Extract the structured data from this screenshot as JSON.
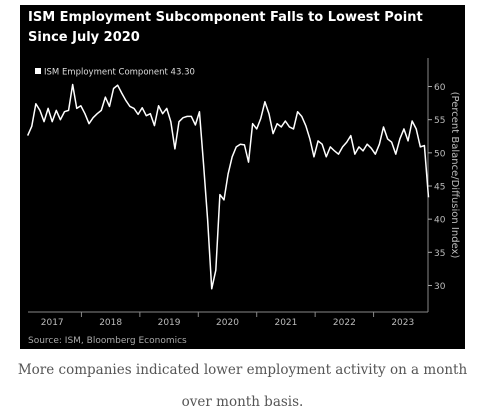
{
  "chart_data": {
    "type": "line",
    "title": "ISM Employment Subcomponent Falls to Lowest Point Since July 2020",
    "y_axis_label": "(Percent Balance/Diffusion Index)",
    "source": "Source: ISM, Bloomberg Economics",
    "x": [
      2017.08,
      2017.15,
      2017.22,
      2017.29,
      2017.36,
      2017.43,
      2017.5,
      2017.57,
      2017.64,
      2017.71,
      2017.78,
      2017.85,
      2017.92,
      2017.99,
      2018.06,
      2018.13,
      2018.2,
      2018.27,
      2018.34,
      2018.41,
      2018.48,
      2018.55,
      2018.62,
      2018.69,
      2018.76,
      2018.83,
      2018.9,
      2018.97,
      2019.04,
      2019.11,
      2019.18,
      2019.25,
      2019.32,
      2019.39,
      2019.46,
      2019.53,
      2019.6,
      2019.67,
      2019.74,
      2019.81,
      2019.88,
      2019.95,
      2020.02,
      2020.09,
      2020.16,
      2020.23,
      2020.3,
      2020.37,
      2020.44,
      2020.51,
      2020.58,
      2020.65,
      2020.72,
      2020.79,
      2020.86,
      2020.93,
      2021.0,
      2021.07,
      2021.14,
      2021.21,
      2021.28,
      2021.35,
      2021.42,
      2021.49,
      2021.56,
      2021.63,
      2021.7,
      2021.77,
      2021.84,
      2021.91,
      2021.98,
      2022.05,
      2022.12,
      2022.19,
      2022.26,
      2022.33,
      2022.4,
      2022.47,
      2022.54,
      2022.61,
      2022.68,
      2022.75,
      2022.82,
      2022.89,
      2022.96,
      2023.03,
      2023.1,
      2023.17,
      2023.24,
      2023.31,
      2023.38,
      2023.45,
      2023.52,
      2023.59,
      2023.66,
      2023.73,
      2023.8,
      2023.87,
      2023.94
    ],
    "series": [
      {
        "name": "ISM Employment Component 43.30",
        "color": "#ffffff",
        "values": [
          52.6,
          54,
          57.4,
          56.4,
          54.7,
          56.7,
          54.7,
          56.4,
          55,
          56.2,
          56.4,
          60.3,
          56.7,
          57.1,
          55.9,
          54.4,
          55.3,
          55.9,
          56.4,
          58.4,
          57,
          59.7,
          60.2,
          59,
          57.9,
          57,
          56.7,
          55.8,
          56.8,
          55.6,
          55.9,
          54.1,
          57.1,
          55.9,
          56.7,
          54.7,
          50.6,
          54.7,
          55.3,
          55.5,
          55.5,
          54.2,
          56.2,
          48.3,
          39.9,
          29.5,
          32.3,
          43.7,
          42.9,
          46.8,
          49.4,
          50.9,
          51.3,
          51.2,
          48.6,
          54.4,
          53.6,
          55.2,
          57.7,
          55.9,
          52.9,
          54.4,
          53.9,
          54.8,
          53.9,
          53.6,
          56.2,
          55.5,
          54.1,
          52.1,
          49.4,
          51.8,
          51.3,
          49.4,
          50.9,
          50.3,
          49.8,
          50.9,
          51.6,
          52.6,
          49.8,
          50.9,
          50.3,
          51.3,
          50.7,
          49.8,
          51.3,
          53.9,
          52.1,
          51.6,
          49.8,
          52.1,
          53.6,
          51.8,
          54.8,
          53.6,
          50.9,
          51.1,
          43.3
        ]
      }
    ],
    "xlim": [
      2017,
      2024
    ],
    "xticks": [
      {
        "value": 2017.5,
        "label": "2017"
      },
      {
        "value": 2018.5,
        "label": "2018"
      },
      {
        "value": 2019.5,
        "label": "2019"
      },
      {
        "value": 2020.5,
        "label": "2020"
      },
      {
        "value": 2021.5,
        "label": "2021"
      },
      {
        "value": 2022.5,
        "label": "2022"
      },
      {
        "value": 2023.5,
        "label": "2023"
      }
    ],
    "ylim": [
      26,
      64.3
    ],
    "yticks": [
      30,
      35,
      40,
      45,
      50,
      55,
      60
    ],
    "y_axis_side": "right",
    "grid": false,
    "legend": "top-left"
  },
  "caption": [
    "More companies indicated lower employment activity on a month",
    "over month basis."
  ]
}
